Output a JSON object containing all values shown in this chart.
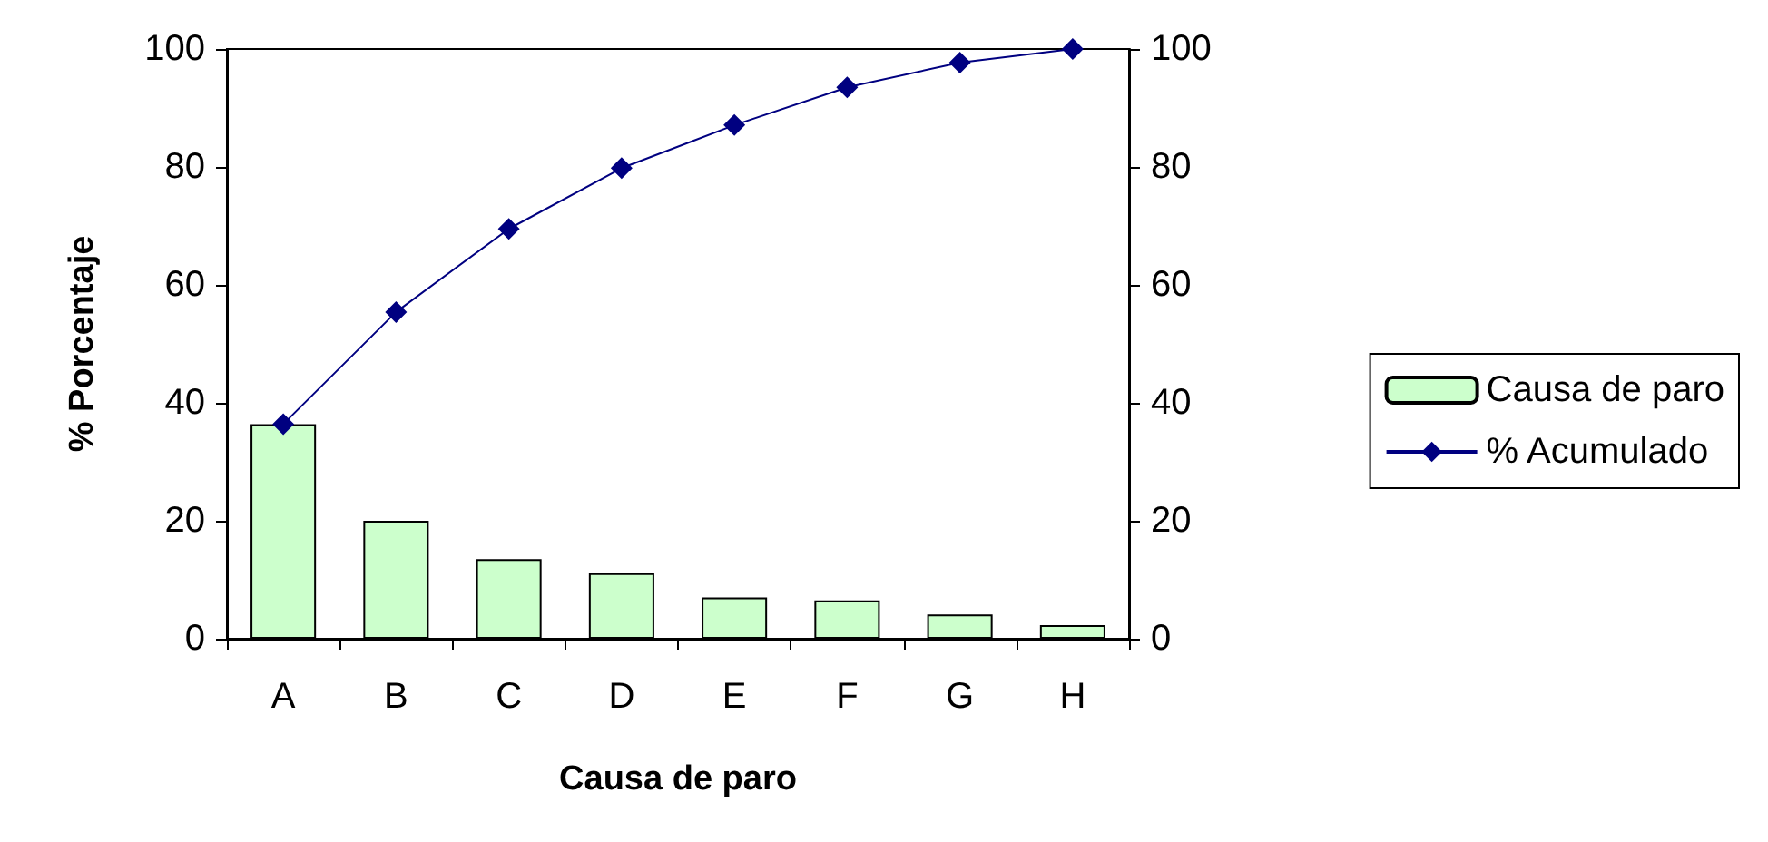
{
  "chart_data": {
    "type": "bar",
    "xlabel": "Causa de paro",
    "ylabel": "% Porcentaje",
    "categories": [
      "A",
      "B",
      "C",
      "D",
      "E",
      "F",
      "G",
      "H"
    ],
    "series": [
      {
        "name": "Causa de paro",
        "color": "#ccffcc",
        "values": [
          36.4,
          20,
          13.5,
          11.1,
          7,
          6.5,
          4.1,
          2.3
        ]
      },
      {
        "name": "% Acumulado",
        "type": "line",
        "color": "#000080",
        "marker": "diamond",
        "values": [
          36.4,
          55.4,
          69.5,
          79.8,
          87.1,
          93.5,
          97.7,
          100
        ]
      }
    ],
    "ylim": [
      0,
      100
    ],
    "yticks": [
      0,
      20,
      40,
      60,
      80,
      100
    ],
    "y2lim": [
      0,
      100
    ],
    "y2ticks": [
      0,
      20,
      40,
      60,
      80,
      100
    ],
    "grid": false,
    "legend": "right"
  }
}
